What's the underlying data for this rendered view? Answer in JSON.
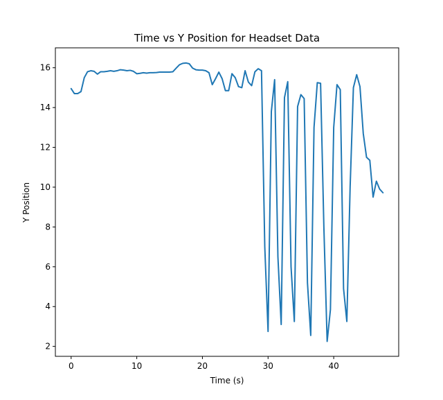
{
  "chart_data": {
    "type": "line",
    "title": "Time vs Y Position for Headset Data",
    "xlabel": "Time (s)",
    "ylabel": "Y Position",
    "xlim": [
      -2.4,
      49.9
    ],
    "ylim": [
      1.5,
      17.0
    ],
    "x_ticks": [
      0,
      10,
      20,
      30,
      40
    ],
    "y_ticks": [
      2,
      4,
      6,
      8,
      10,
      12,
      14,
      16
    ],
    "x_tick_labels": [
      "0",
      "10",
      "20",
      "30",
      "40"
    ],
    "y_tick_labels": [
      "2",
      "4",
      "6",
      "8",
      "10",
      "12",
      "14",
      "16"
    ],
    "grid": false,
    "series": [
      {
        "color": "#1f77b4",
        "x": [
          0.0,
          0.5,
          1.0,
          1.5,
          2.0,
          2.5,
          3.0,
          3.5,
          4.0,
          4.5,
          5.0,
          5.5,
          6.0,
          6.5,
          7.0,
          7.5,
          8.0,
          8.5,
          9.0,
          9.5,
          10.0,
          10.5,
          11.0,
          11.5,
          12.0,
          12.5,
          13.0,
          13.5,
          14.0,
          14.5,
          15.0,
          15.5,
          16.0,
          16.5,
          17.0,
          17.5,
          18.0,
          18.5,
          19.0,
          19.5,
          20.0,
          20.5,
          21.0,
          21.5,
          22.0,
          22.5,
          23.0,
          23.5,
          24.0,
          24.5,
          25.0,
          25.5,
          26.0,
          26.5,
          27.0,
          27.5,
          28.0,
          28.5,
          29.0,
          29.5,
          30.0,
          30.5,
          31.0,
          31.5,
          32.0,
          32.5,
          33.0,
          33.5,
          34.0,
          34.5,
          35.0,
          35.5,
          36.0,
          36.5,
          37.0,
          37.5,
          38.0,
          38.5,
          39.0,
          39.5,
          40.0,
          40.5,
          41.0,
          41.5,
          42.0,
          42.5,
          43.0,
          43.5,
          44.0,
          44.5,
          45.0,
          45.5,
          46.0,
          46.5,
          47.0,
          47.5
        ],
        "values": [
          14.95,
          14.7,
          14.7,
          14.8,
          15.5,
          15.8,
          15.85,
          15.82,
          15.68,
          15.8,
          15.8,
          15.82,
          15.85,
          15.82,
          15.85,
          15.9,
          15.88,
          15.85,
          15.87,
          15.82,
          15.7,
          15.72,
          15.75,
          15.73,
          15.75,
          15.75,
          15.76,
          15.78,
          15.78,
          15.78,
          15.78,
          15.8,
          15.98,
          16.15,
          16.22,
          16.24,
          16.2,
          15.98,
          15.9,
          15.88,
          15.88,
          15.85,
          15.75,
          15.15,
          15.45,
          15.78,
          15.45,
          14.85,
          14.85,
          15.7,
          15.5,
          15.05,
          15.0,
          15.85,
          15.28,
          15.1,
          15.8,
          15.95,
          15.85,
          7.0,
          2.75,
          13.8,
          15.4,
          6.5,
          3.1,
          14.5,
          15.3,
          6.0,
          3.25,
          14.05,
          14.65,
          14.45,
          5.2,
          2.55,
          13.0,
          15.25,
          15.22,
          8.0,
          2.25,
          3.85,
          13.0,
          15.15,
          14.9,
          4.9,
          3.25,
          10.0,
          15.0,
          15.65,
          15.05,
          12.7,
          11.5,
          11.35,
          9.5,
          10.3,
          9.9,
          9.72
        ]
      }
    ]
  }
}
